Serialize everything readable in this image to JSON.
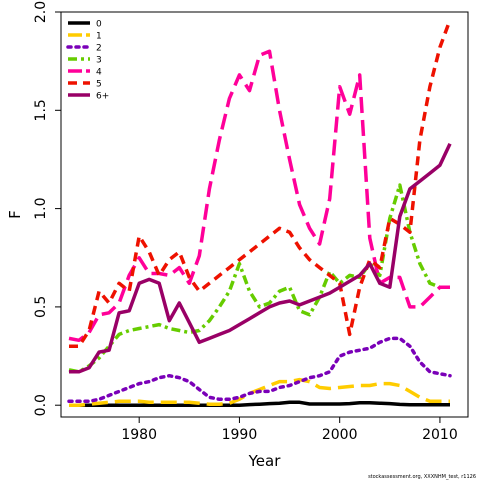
{
  "chart_data": {
    "type": "line",
    "xlabel": "Year",
    "ylabel": "F",
    "xlim": [
      1972.2,
      2012.8
    ],
    "ylim": [
      -0.06,
      2.0
    ],
    "xticks": [
      1980,
      1990,
      2000,
      2010
    ],
    "xtick_labels": [
      "1980",
      "1990",
      "2000",
      "2010"
    ],
    "yticks": [
      0.0,
      0.5,
      1.0,
      1.5,
      2.0
    ],
    "ytick_labels": [
      "0.0",
      "0.5",
      "1.0",
      "1.5",
      "2.0"
    ],
    "grid": false,
    "legend_position": "top-left",
    "footnote": "stockassessment.org, XXXNHM_test, r1126",
    "series": [
      {
        "name": "0",
        "color": "#000000",
        "dash": "solid",
        "x": [
          1973,
          1974,
          1975,
          1976,
          1977,
          1978,
          1979,
          1980,
          1981,
          1982,
          1983,
          1984,
          1985,
          1986,
          1987,
          1988,
          1989,
          1990,
          1991,
          1992,
          1993,
          1994,
          1995,
          1996,
          1997,
          1998,
          1999,
          2000,
          2001,
          2002,
          2003,
          2004,
          2005,
          2006,
          2007,
          2008,
          2009,
          2010,
          2011
        ],
        "y": [
          0.0,
          0.0,
          0.0,
          0.0,
          0.0,
          0.0,
          0.0,
          0.0,
          0.0,
          0.0,
          0.0,
          0.0,
          0.0,
          0.0,
          0.0,
          0.0,
          0.0,
          0.0,
          0.003,
          0.005,
          0.008,
          0.01,
          0.015,
          0.015,
          0.006,
          0.006,
          0.006,
          0.006,
          0.008,
          0.012,
          0.012,
          0.01,
          0.008,
          0.004,
          0.002,
          0.002,
          0.002,
          0.002,
          0.002
        ]
      },
      {
        "name": "1",
        "color": "#ffcc00",
        "dash": "longdash",
        "x": [
          1973,
          1974,
          1975,
          1976,
          1977,
          1978,
          1979,
          1980,
          1981,
          1982,
          1983,
          1984,
          1985,
          1986,
          1987,
          1988,
          1989,
          1990,
          1991,
          1992,
          1993,
          1994,
          1995,
          1996,
          1997,
          1998,
          1999,
          2000,
          2001,
          2002,
          2003,
          2004,
          2005,
          2006,
          2007,
          2008,
          2009,
          2010,
          2011
        ],
        "y": [
          0.0,
          0.0,
          0.005,
          0.01,
          0.015,
          0.02,
          0.02,
          0.02,
          0.015,
          0.015,
          0.015,
          0.015,
          0.015,
          0.01,
          0.005,
          0.005,
          0.01,
          0.03,
          0.06,
          0.08,
          0.1,
          0.12,
          0.12,
          0.13,
          0.12,
          0.09,
          0.085,
          0.09,
          0.095,
          0.1,
          0.1,
          0.11,
          0.11,
          0.1,
          0.07,
          0.04,
          0.02,
          0.02,
          0.02
        ]
      },
      {
        "name": "2",
        "color": "#7a00b8",
        "dash": "dotted",
        "x": [
          1973,
          1974,
          1975,
          1976,
          1977,
          1978,
          1979,
          1980,
          1981,
          1982,
          1983,
          1984,
          1985,
          1986,
          1987,
          1988,
          1989,
          1990,
          1991,
          1992,
          1993,
          1994,
          1995,
          1996,
          1997,
          1998,
          1999,
          2000,
          2001,
          2002,
          2003,
          2004,
          2005,
          2006,
          2007,
          2008,
          2009,
          2010,
          2011
        ],
        "y": [
          0.02,
          0.02,
          0.02,
          0.03,
          0.05,
          0.07,
          0.09,
          0.11,
          0.12,
          0.14,
          0.15,
          0.14,
          0.12,
          0.08,
          0.04,
          0.03,
          0.03,
          0.04,
          0.06,
          0.07,
          0.07,
          0.09,
          0.1,
          0.12,
          0.14,
          0.15,
          0.17,
          0.25,
          0.27,
          0.28,
          0.29,
          0.32,
          0.34,
          0.34,
          0.3,
          0.22,
          0.17,
          0.16,
          0.15
        ]
      },
      {
        "name": "3",
        "color": "#66cc00",
        "dash": "dashdot",
        "x": [
          1973,
          1974,
          1975,
          1976,
          1977,
          1978,
          1979,
          1980,
          1981,
          1982,
          1983,
          1984,
          1985,
          1986,
          1987,
          1988,
          1989,
          1990,
          1991,
          1992,
          1993,
          1994,
          1995,
          1996,
          1997,
          1998,
          1999,
          2000,
          2001,
          2002,
          2003,
          2004,
          2005,
          2006,
          2007,
          2008,
          2009,
          2010,
          2011
        ],
        "y": [
          0.18,
          0.17,
          0.2,
          0.24,
          0.3,
          0.36,
          0.38,
          0.39,
          0.4,
          0.41,
          0.39,
          0.38,
          0.37,
          0.38,
          0.43,
          0.5,
          0.58,
          0.72,
          0.58,
          0.5,
          0.52,
          0.58,
          0.6,
          0.48,
          0.46,
          0.55,
          0.68,
          0.62,
          0.66,
          0.65,
          0.72,
          0.66,
          0.95,
          1.12,
          0.88,
          0.72,
          0.62,
          0.6,
          0.6
        ]
      },
      {
        "name": "4",
        "color": "#ff0099",
        "dash": "longdash",
        "x": [
          1973,
          1974,
          1975,
          1976,
          1977,
          1978,
          1979,
          1980,
          1981,
          1982,
          1983,
          1984,
          1985,
          1986,
          1987,
          1988,
          1989,
          1990,
          1991,
          1992,
          1993,
          1994,
          1995,
          1996,
          1997,
          1998,
          1999,
          2000,
          2001,
          2002,
          2003,
          2004,
          2005,
          2006,
          2007,
          2008,
          2009,
          2010,
          2011
        ],
        "y": [
          0.34,
          0.33,
          0.37,
          0.46,
          0.47,
          0.52,
          0.66,
          0.75,
          0.67,
          0.67,
          0.66,
          0.7,
          0.62,
          0.76,
          1.1,
          1.35,
          1.56,
          1.68,
          1.6,
          1.78,
          1.8,
          1.5,
          1.25,
          1.02,
          0.9,
          0.82,
          1.05,
          1.62,
          1.48,
          1.68,
          0.85,
          0.62,
          0.65,
          0.65,
          0.5,
          0.5,
          0.55,
          0.6,
          0.6
        ]
      },
      {
        "name": "5",
        "color": "#ee1100",
        "dash": "dashed",
        "x": [
          1973,
          1974,
          1975,
          1976,
          1977,
          1978,
          1979,
          1980,
          1981,
          1982,
          1983,
          1984,
          1985,
          1986,
          1987,
          1988,
          1989,
          1990,
          1991,
          1992,
          1993,
          1994,
          1995,
          1996,
          1997,
          1998,
          1999,
          2000,
          2001,
          2002,
          2003,
          2004,
          2005,
          2006,
          2007,
          2008,
          2009,
          2010,
          2011
        ],
        "y": [
          0.3,
          0.3,
          0.38,
          0.58,
          0.52,
          0.62,
          0.58,
          0.86,
          0.78,
          0.66,
          0.74,
          0.78,
          0.65,
          0.58,
          0.62,
          0.66,
          0.7,
          0.74,
          0.78,
          0.82,
          0.86,
          0.9,
          0.88,
          0.8,
          0.74,
          0.7,
          0.66,
          0.62,
          0.36,
          0.6,
          0.74,
          0.7,
          0.95,
          0.92,
          0.88,
          1.35,
          1.62,
          1.82,
          1.96
        ]
      },
      {
        "name": "6+",
        "color": "#990066",
        "dash": "solid",
        "x": [
          1973,
          1974,
          1975,
          1976,
          1977,
          1978,
          1979,
          1980,
          1981,
          1982,
          1983,
          1984,
          1985,
          1986,
          1987,
          1988,
          1989,
          1990,
          1991,
          1992,
          1993,
          1994,
          1995,
          1996,
          1997,
          1998,
          1999,
          2000,
          2001,
          2002,
          2003,
          2004,
          2005,
          2006,
          2007,
          2008,
          2009,
          2010,
          2011
        ],
        "y": [
          0.17,
          0.17,
          0.19,
          0.27,
          0.28,
          0.47,
          0.48,
          0.62,
          0.64,
          0.62,
          0.43,
          0.52,
          0.42,
          0.32,
          0.34,
          0.36,
          0.38,
          0.41,
          0.44,
          0.47,
          0.5,
          0.52,
          0.53,
          0.51,
          0.53,
          0.55,
          0.57,
          0.6,
          0.63,
          0.66,
          0.72,
          0.62,
          0.6,
          0.96,
          1.1,
          1.14,
          1.18,
          1.22,
          1.33
        ]
      }
    ]
  }
}
